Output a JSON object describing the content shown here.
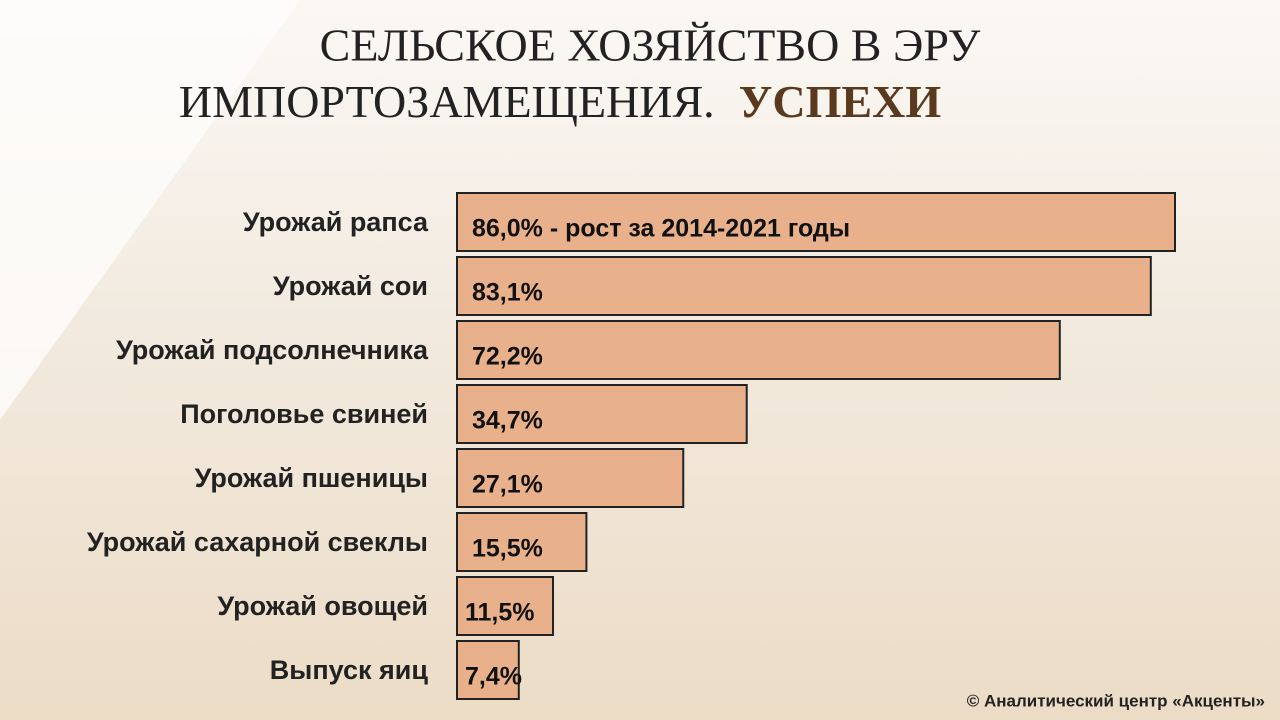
{
  "chart_data": {
    "type": "hbar",
    "title": "СЕЛЬСКОЕ  ХОЗЯЙСТВО  В  ЭРУ",
    "title_line2": "ИМПОРТОЗАМЕЩЕНИЯ.",
    "title_highlight": "УСПЕХИ",
    "categories": [
      "Урожай рапса",
      "Урожай сои",
      "Урожай подсолнечника",
      "Поголовье свиней",
      "Урожай пшеницы",
      "Урожай сахарной свеклы",
      "Урожай овощей",
      "Выпуск яиц"
    ],
    "values": [
      86.0,
      83.1,
      72.2,
      34.7,
      27.1,
      15.5,
      11.5,
      7.4
    ],
    "value_labels": [
      "86,0% - рост за 2014-2021 годы",
      "83,1%",
      "72,2%",
      "34,7%",
      "27,1%",
      "15,5%",
      "11,5%",
      "7,4%"
    ],
    "color": "#e8b18c",
    "source": "© Аналитический  центр  «Акценты»"
  }
}
